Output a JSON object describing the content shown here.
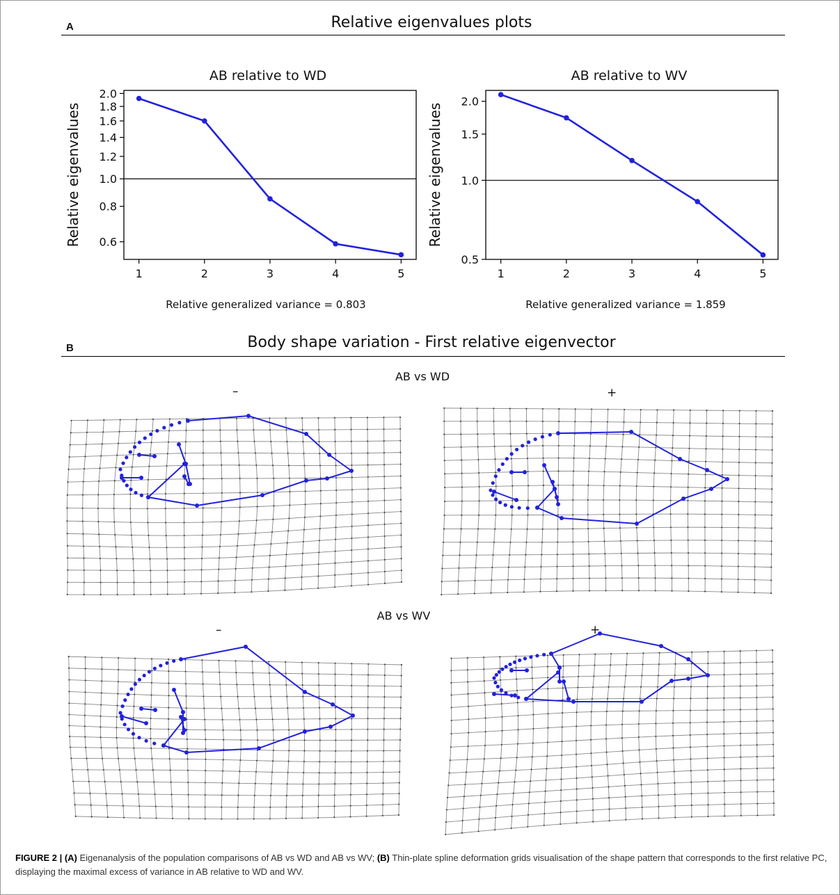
{
  "panel_a": {
    "letter": "A",
    "title": "Relative eigenvalues plots"
  },
  "panel_b": {
    "letter": "B",
    "title": "Body shape variation - First relative eigenvector",
    "comparison1": {
      "label": "AB vs WD",
      "minus": "–",
      "plus": "+"
    },
    "comparison2": {
      "label": "AB vs WV",
      "minus": "–",
      "plus": "+"
    }
  },
  "caption": {
    "figure_label": "FIGURE 2 |",
    "a_label": "(A)",
    "a_text": "Eigenanalysis of the population comparisons of AB vs WD and AB vs WV;",
    "b_label": "(B)",
    "b_text": "Thin-plate spline deformation grids visualisation of the shape pattern that corresponds to the first relative PC, displaying the maximal excess of variance in AB relative to WD and WV."
  },
  "colors": {
    "series": "#2222dd",
    "grid": "#888888",
    "axis": "#000000"
  },
  "chart_data": [
    {
      "type": "line",
      "title": "AB relative to WD",
      "xlabel": "",
      "ylabel": "Relative eigenvalues",
      "footer": "Relative generalized variance = 0.803",
      "y_scale": "log",
      "x": [
        1,
        2,
        3,
        4,
        5
      ],
      "values": [
        1.92,
        1.6,
        0.85,
        0.59,
        0.54
      ],
      "x_ticks": [
        "1",
        "2",
        "3",
        "4",
        "5"
      ],
      "y_ticks": [
        0.6,
        0.8,
        1.0,
        1.2,
        1.4,
        1.6,
        1.8,
        2.0
      ],
      "y_tick_labels": [
        "0.6",
        "0.8",
        "1.0",
        "1.2",
        "1.4",
        "1.6",
        "1.8",
        "2.0"
      ],
      "reference_line": 1.0,
      "ylim": [
        0.52,
        2.05
      ],
      "grid": false
    },
    {
      "type": "line",
      "title": "AB relative to WV",
      "xlabel": "",
      "ylabel": "Relative eigenvalues",
      "footer": "Relative generalized variance = 1.859",
      "y_scale": "log",
      "x": [
        1,
        2,
        3,
        4,
        5
      ],
      "values": [
        2.12,
        1.73,
        1.19,
        0.83,
        0.52
      ],
      "x_ticks": [
        "1",
        "2",
        "3",
        "4",
        "5"
      ],
      "y_ticks": [
        0.5,
        1.0,
        1.5,
        2.0
      ],
      "y_tick_labels": [
        "0.5",
        "1.0",
        "1.5",
        "2.0"
      ],
      "reference_line": 1.0,
      "ylim": [
        0.5,
        2.2
      ],
      "grid": false
    }
  ]
}
